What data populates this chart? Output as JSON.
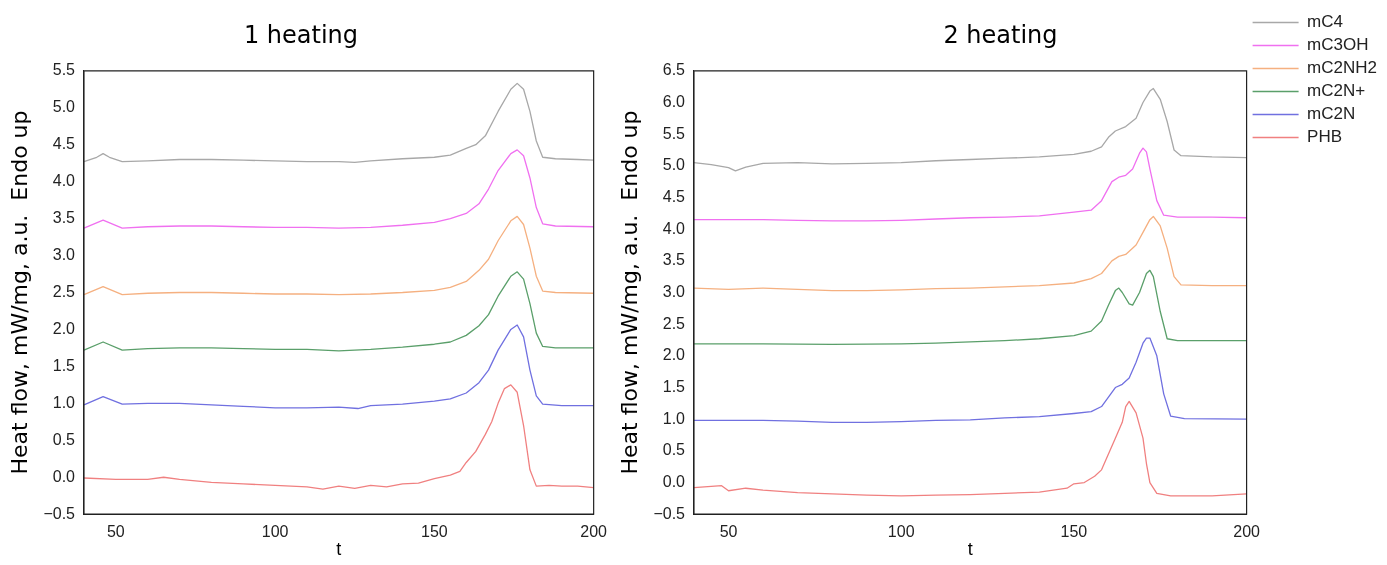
{
  "chart_data": [
    {
      "type": "line",
      "title": "1 heating",
      "xlabel": "t",
      "ylabel": "Heat flow, mW/mg, a.u.  Endo up",
      "xlim": [
        40,
        200
      ],
      "xticks": [
        50,
        100,
        150,
        200
      ],
      "ylim": [
        -0.5,
        5.5
      ],
      "yticks": [
        {
          "value": -0.5,
          "label": "−0.5"
        },
        {
          "value": 0,
          "label": "0.0"
        },
        {
          "value": 0.5,
          "label": "0.5"
        },
        {
          "value": 1,
          "label": "1.0"
        },
        {
          "value": 1.5,
          "label": "1.5"
        },
        {
          "value": 2,
          "label": "2.0"
        },
        {
          "value": 2.5,
          "label": "2.5"
        },
        {
          "value": 3,
          "label": "3.0"
        },
        {
          "value": 3.5,
          "label": "3.5"
        },
        {
          "value": 4,
          "label": "4.0"
        },
        {
          "value": 4.5,
          "label": "4.5"
        },
        {
          "value": 5,
          "label": "5.0"
        },
        {
          "value": 5.5,
          "label": "5.5"
        }
      ],
      "grid": false,
      "legend": false,
      "marker": "none",
      "line_style": "solid",
      "series": [
        {
          "color": "#a8a8a8",
          "x": [
            40,
            44,
            46,
            48,
            52,
            60,
            70,
            80,
            90,
            100,
            110,
            120,
            125,
            130,
            140,
            150,
            155,
            160,
            163,
            166,
            170,
            174,
            176,
            178,
            180,
            182,
            184,
            188,
            195,
            200
          ],
          "values": [
            4.27,
            4.33,
            4.38,
            4.33,
            4.27,
            4.28,
            4.3,
            4.3,
            4.29,
            4.28,
            4.27,
            4.27,
            4.26,
            4.28,
            4.31,
            4.33,
            4.36,
            4.45,
            4.5,
            4.62,
            4.95,
            5.25,
            5.33,
            5.25,
            4.95,
            4.55,
            4.33,
            4.31,
            4.3,
            4.29
          ]
        },
        {
          "color": "#f070f0",
          "x": [
            40,
            46,
            52,
            60,
            70,
            80,
            90,
            100,
            110,
            120,
            130,
            140,
            150,
            155,
            160,
            164,
            167,
            170,
            174,
            176,
            178,
            180,
            182,
            184,
            188,
            200
          ],
          "values": [
            3.37,
            3.48,
            3.37,
            3.39,
            3.4,
            3.4,
            3.39,
            3.38,
            3.38,
            3.37,
            3.38,
            3.41,
            3.45,
            3.5,
            3.57,
            3.7,
            3.9,
            4.15,
            4.38,
            4.43,
            4.35,
            4.05,
            3.65,
            3.43,
            3.4,
            3.39
          ]
        },
        {
          "color": "#f5b080",
          "x": [
            40,
            46,
            52,
            60,
            70,
            80,
            90,
            100,
            110,
            120,
            130,
            140,
            150,
            155,
            160,
            164,
            167,
            170,
            174,
            176,
            178,
            180,
            182,
            184,
            188,
            200
          ],
          "values": [
            2.47,
            2.58,
            2.47,
            2.49,
            2.5,
            2.5,
            2.49,
            2.48,
            2.48,
            2.47,
            2.48,
            2.5,
            2.53,
            2.57,
            2.65,
            2.8,
            2.95,
            3.2,
            3.47,
            3.53,
            3.42,
            3.1,
            2.72,
            2.52,
            2.5,
            2.49
          ]
        },
        {
          "color": "#5a9f6a",
          "x": [
            40,
            46,
            52,
            60,
            70,
            80,
            90,
            100,
            110,
            120,
            130,
            140,
            150,
            155,
            160,
            164,
            167,
            170,
            174,
            176,
            178,
            180,
            182,
            184,
            188,
            200
          ],
          "values": [
            1.72,
            1.83,
            1.72,
            1.74,
            1.75,
            1.75,
            1.74,
            1.73,
            1.73,
            1.71,
            1.73,
            1.76,
            1.8,
            1.83,
            1.92,
            2.05,
            2.2,
            2.45,
            2.72,
            2.78,
            2.68,
            2.35,
            1.95,
            1.77,
            1.75,
            1.75
          ]
        },
        {
          "color": "#7070e0",
          "x": [
            40,
            46,
            52,
            60,
            70,
            80,
            90,
            100,
            110,
            120,
            126,
            130,
            140,
            150,
            155,
            160,
            164,
            167,
            170,
            174,
            176,
            178,
            180,
            182,
            184,
            190,
            200
          ],
          "values": [
            0.98,
            1.09,
            0.99,
            1.0,
            1.0,
            0.98,
            0.96,
            0.94,
            0.94,
            0.95,
            0.93,
            0.97,
            0.99,
            1.03,
            1.06,
            1.14,
            1.28,
            1.45,
            1.72,
            2.0,
            2.06,
            1.9,
            1.45,
            1.1,
            0.99,
            0.97,
            0.97
          ]
        },
        {
          "color": "#f08080",
          "x": [
            40,
            50,
            60,
            65,
            70,
            80,
            90,
            100,
            110,
            115,
            120,
            125,
            130,
            135,
            140,
            145,
            150,
            155,
            158,
            160,
            163,
            166,
            168,
            170,
            172,
            174,
            176,
            178,
            180,
            182,
            186,
            190,
            195,
            200
          ],
          "values": [
            -0.01,
            -0.03,
            -0.03,
            0.0,
            -0.03,
            -0.07,
            -0.09,
            -0.11,
            -0.13,
            -0.16,
            -0.12,
            -0.15,
            -0.11,
            -0.13,
            -0.09,
            -0.08,
            -0.02,
            0.03,
            0.08,
            0.2,
            0.35,
            0.58,
            0.75,
            1.0,
            1.2,
            1.25,
            1.15,
            0.7,
            0.1,
            -0.12,
            -0.11,
            -0.12,
            -0.12,
            -0.14
          ]
        }
      ]
    },
    {
      "type": "line",
      "title": "2 heating",
      "xlabel": "t",
      "ylabel": "Heat flow, mW/mg, a.u.  Endo up",
      "xlim": [
        40,
        200
      ],
      "xticks": [
        50,
        100,
        150,
        200
      ],
      "ylim": [
        -0.5,
        6.5
      ],
      "yticks": [
        {
          "value": -0.5,
          "label": "−0.5"
        },
        {
          "value": 0,
          "label": "0.0"
        },
        {
          "value": 0.5,
          "label": "0.5"
        },
        {
          "value": 1,
          "label": "1.0"
        },
        {
          "value": 1.5,
          "label": "1.5"
        },
        {
          "value": 2,
          "label": "2.0"
        },
        {
          "value": 2.5,
          "label": "2.5"
        },
        {
          "value": 3,
          "label": "3.0"
        },
        {
          "value": 3.5,
          "label": "3.5"
        },
        {
          "value": 4,
          "label": "4.0"
        },
        {
          "value": 4.5,
          "label": "4.5"
        },
        {
          "value": 5,
          "label": "5.0"
        },
        {
          "value": 5.5,
          "label": "5.5"
        },
        {
          "value": 6,
          "label": "6.0"
        },
        {
          "value": 6.5,
          "label": "6.5"
        }
      ],
      "grid": false,
      "legend": "top right",
      "marker": "none",
      "line_style": "solid",
      "series": [
        {
          "name": "mC4",
          "color": "#a8a8a8",
          "x": [
            40,
            45,
            50,
            52,
            55,
            60,
            70,
            80,
            90,
            100,
            110,
            120,
            130,
            140,
            150,
            155,
            158,
            160,
            162,
            165,
            168,
            170,
            172,
            173,
            175,
            177,
            179,
            181,
            190,
            200
          ],
          "values": [
            5.05,
            5.02,
            4.97,
            4.92,
            4.98,
            5.04,
            5.05,
            5.03,
            5.04,
            5.05,
            5.08,
            5.1,
            5.12,
            5.14,
            5.18,
            5.23,
            5.3,
            5.45,
            5.55,
            5.62,
            5.75,
            6.0,
            6.18,
            6.22,
            6.05,
            5.7,
            5.25,
            5.16,
            5.14,
            5.13
          ]
        },
        {
          "name": "mC3OH",
          "color": "#f070f0",
          "x": [
            40,
            50,
            60,
            70,
            80,
            90,
            100,
            110,
            120,
            130,
            140,
            150,
            155,
            158,
            161,
            163,
            165,
            167,
            169,
            170,
            171,
            172,
            174,
            176,
            180,
            190,
            200
          ],
          "values": [
            4.15,
            4.15,
            4.15,
            4.14,
            4.13,
            4.13,
            4.14,
            4.16,
            4.18,
            4.19,
            4.21,
            4.27,
            4.3,
            4.45,
            4.75,
            4.82,
            4.85,
            4.95,
            5.2,
            5.28,
            5.22,
            4.95,
            4.45,
            4.22,
            4.19,
            4.19,
            4.18
          ]
        },
        {
          "name": "mC2NH2",
          "color": "#f5b080",
          "x": [
            40,
            50,
            60,
            70,
            80,
            90,
            100,
            110,
            120,
            130,
            140,
            150,
            155,
            158,
            161,
            163,
            165,
            168,
            170,
            172,
            173,
            175,
            177,
            179,
            181,
            190,
            200
          ],
          "values": [
            3.07,
            3.05,
            3.07,
            3.05,
            3.03,
            3.03,
            3.04,
            3.06,
            3.07,
            3.09,
            3.11,
            3.15,
            3.22,
            3.3,
            3.5,
            3.57,
            3.6,
            3.75,
            3.95,
            4.15,
            4.2,
            4.05,
            3.7,
            3.25,
            3.12,
            3.11,
            3.11
          ]
        },
        {
          "name": "mC2N+",
          "color": "#5a9f6a",
          "x": [
            40,
            60,
            80,
            100,
            110,
            120,
            130,
            140,
            150,
            155,
            158,
            160,
            162,
            163,
            164,
            166,
            167,
            169,
            171,
            172,
            173,
            175,
            177,
            180,
            200
          ],
          "values": [
            2.19,
            2.19,
            2.18,
            2.19,
            2.2,
            2.22,
            2.24,
            2.27,
            2.32,
            2.39,
            2.55,
            2.8,
            3.03,
            3.07,
            3.0,
            2.82,
            2.8,
            3.0,
            3.3,
            3.35,
            3.25,
            2.7,
            2.27,
            2.24,
            2.24
          ]
        },
        {
          "name": "mC2N",
          "color": "#7070e0",
          "x": [
            40,
            50,
            60,
            70,
            80,
            90,
            100,
            110,
            120,
            130,
            140,
            150,
            155,
            158,
            160,
            162,
            164,
            166,
            168,
            170,
            171,
            172,
            174,
            176,
            178,
            182,
            200
          ],
          "values": [
            0.98,
            0.98,
            0.98,
            0.97,
            0.95,
            0.95,
            0.96,
            0.98,
            0.99,
            1.02,
            1.04,
            1.09,
            1.12,
            1.2,
            1.35,
            1.5,
            1.55,
            1.65,
            1.9,
            2.2,
            2.28,
            2.28,
            2.0,
            1.4,
            1.05,
            1.01,
            1.0
          ]
        },
        {
          "name": "PHB",
          "color": "#f08080",
          "x": [
            40,
            45,
            48,
            50,
            55,
            60,
            70,
            80,
            90,
            100,
            110,
            120,
            130,
            140,
            148,
            150,
            153,
            156,
            158,
            160,
            162,
            164,
            165,
            166,
            168,
            170,
            171,
            172,
            174,
            178,
            190,
            200
          ],
          "values": [
            -0.08,
            -0.06,
            -0.05,
            -0.13,
            -0.09,
            -0.12,
            -0.16,
            -0.18,
            -0.2,
            -0.21,
            -0.2,
            -0.19,
            -0.17,
            -0.15,
            -0.09,
            -0.02,
            0.0,
            0.1,
            0.2,
            0.45,
            0.7,
            0.95,
            1.2,
            1.28,
            1.1,
            0.7,
            0.3,
            0.0,
            -0.17,
            -0.21,
            -0.21,
            -0.18
          ]
        }
      ]
    }
  ]
}
